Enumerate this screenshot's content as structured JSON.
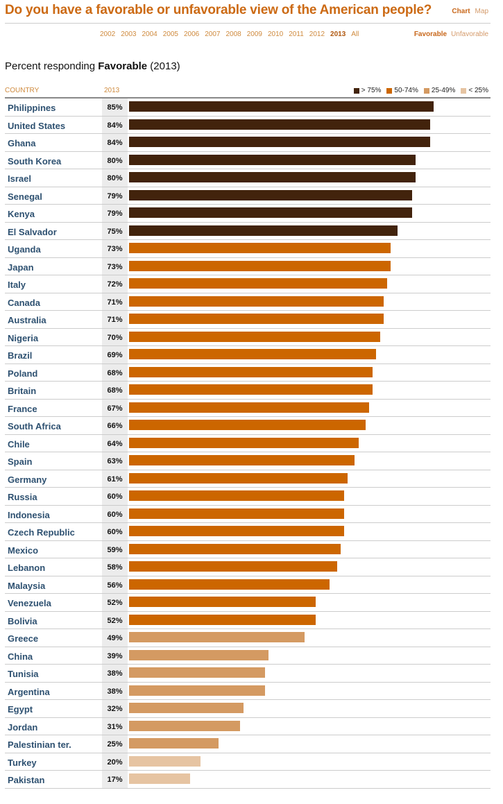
{
  "header": {
    "title": "Do you have a favorable or unfavorable view of the American people?",
    "views": [
      {
        "label": "Chart",
        "active": true
      },
      {
        "label": "Map",
        "active": false
      }
    ],
    "years": [
      "2002",
      "2003",
      "2004",
      "2005",
      "2006",
      "2007",
      "2008",
      "2009",
      "2010",
      "2011",
      "2012",
      "2013",
      "All"
    ],
    "active_year": "2013",
    "modes": [
      {
        "label": "Favorable",
        "active": true
      },
      {
        "label": "Unfavorable",
        "active": false
      }
    ]
  },
  "subtitle": {
    "prefix": "Percent responding ",
    "bold": "Favorable",
    "suffix": " (2013)"
  },
  "colors": {
    "dark": "#42230c",
    "mid": "#cc6600",
    "light": "#d49a62",
    "lightest": "#e6c4a2"
  },
  "chart_data": {
    "type": "bar",
    "orientation": "horizontal",
    "title": "Percent responding Favorable (2013)",
    "column_headers": [
      "COUNTRY",
      "2013"
    ],
    "legend": [
      {
        "label": "> 75%",
        "color": "#42230c"
      },
      {
        "label": "50-74%",
        "color": "#cc6600"
      },
      {
        "label": "25-49%",
        "color": "#d49a62"
      },
      {
        "label": "< 25%",
        "color": "#e6c4a2"
      }
    ],
    "legend_position": "top-right",
    "xlim": [
      0,
      100
    ],
    "categories": [
      "Philippines",
      "United States",
      "Ghana",
      "South Korea",
      "Israel",
      "Senegal",
      "Kenya",
      "El Salvador",
      "Uganda",
      "Japan",
      "Italy",
      "Canada",
      "Australia",
      "Nigeria",
      "Brazil",
      "Poland",
      "Britain",
      "France",
      "South Africa",
      "Chile",
      "Spain",
      "Germany",
      "Russia",
      "Indonesia",
      "Czech Republic",
      "Mexico",
      "Lebanon",
      "Malaysia",
      "Venezuela",
      "Bolivia",
      "Greece",
      "China",
      "Tunisia",
      "Argentina",
      "Egypt",
      "Jordan",
      "Palestinian ter.",
      "Turkey",
      "Pakistan"
    ],
    "values": [
      85,
      84,
      84,
      80,
      80,
      79,
      79,
      75,
      73,
      73,
      72,
      71,
      71,
      70,
      69,
      68,
      68,
      67,
      66,
      64,
      63,
      61,
      60,
      60,
      60,
      59,
      58,
      56,
      52,
      52,
      49,
      39,
      38,
      38,
      32,
      31,
      25,
      20,
      17
    ]
  }
}
